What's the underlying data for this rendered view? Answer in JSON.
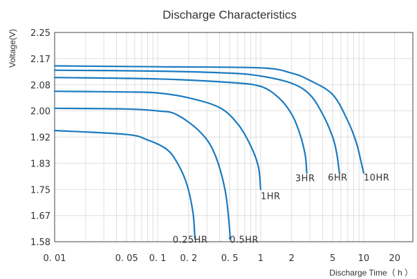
{
  "colors": {
    "curve": "#1a7abf",
    "grid": "#d6d6d6",
    "axis": "#444444",
    "text": "#333333"
  },
  "chart_data": {
    "type": "line",
    "title": "Discharge Characteristics",
    "xlabel": "Discharge Time（ h ）",
    "ylabel": "Voltage(V)",
    "x_scale": "log",
    "xlim": [
      0.01,
      30
    ],
    "ylim": [
      1.58,
      2.25
    ],
    "grid": true,
    "x_ticks": [
      {
        "value": 0.01,
        "label": "0. 01"
      },
      {
        "value": 0.05,
        "label": "0. 05"
      },
      {
        "value": 0.1,
        "label": "0. 1"
      },
      {
        "value": 0.2,
        "label": "0. 2"
      },
      {
        "value": 0.5,
        "label": "0. 5"
      },
      {
        "value": 1,
        "label": "1"
      },
      {
        "value": 2,
        "label": "2"
      },
      {
        "value": 5,
        "label": "5"
      },
      {
        "value": 10,
        "label": "10"
      },
      {
        "value": 20,
        "label": "20"
      }
    ],
    "y_ticks": [
      {
        "value": 2.25,
        "label": "2.25"
      },
      {
        "value": 2.17,
        "label": "2.17"
      },
      {
        "value": 2.08,
        "label": "2.08"
      },
      {
        "value": 2.0,
        "label": "2.00"
      },
      {
        "value": 1.92,
        "label": "1.92"
      },
      {
        "value": 1.83,
        "label": "1.83"
      },
      {
        "value": 1.75,
        "label": "1.75"
      },
      {
        "value": 1.67,
        "label": "1.67"
      },
      {
        "value": 1.58,
        "label": "1.58"
      }
    ],
    "series": [
      {
        "name": "10HR",
        "points": [
          [
            0.01,
            2.145
          ],
          [
            0.1,
            2.142
          ],
          [
            1,
            2.138
          ],
          [
            2,
            2.12
          ],
          [
            3,
            2.095
          ],
          [
            5,
            2.05
          ],
          [
            7,
            1.97
          ],
          [
            8.5,
            1.9
          ],
          [
            9.5,
            1.83
          ],
          [
            10,
            1.8
          ]
        ]
      },
      {
        "name": "6HR",
        "points": [
          [
            0.01,
            2.13
          ],
          [
            0.1,
            2.127
          ],
          [
            0.5,
            2.12
          ],
          [
            1,
            2.11
          ],
          [
            2,
            2.085
          ],
          [
            3,
            2.05
          ],
          [
            4,
            1.99
          ],
          [
            5,
            1.92
          ],
          [
            5.5,
            1.86
          ],
          [
            5.8,
            1.8
          ]
        ]
      },
      {
        "name": "3HR",
        "points": [
          [
            0.01,
            2.105
          ],
          [
            0.1,
            2.1
          ],
          [
            0.5,
            2.088
          ],
          [
            1,
            2.075
          ],
          [
            1.5,
            2.04
          ],
          [
            2,
            1.99
          ],
          [
            2.4,
            1.93
          ],
          [
            2.7,
            1.86
          ],
          [
            2.8,
            1.8
          ]
        ]
      },
      {
        "name": "1HR",
        "points": [
          [
            0.01,
            2.06
          ],
          [
            0.05,
            2.058
          ],
          [
            0.1,
            2.055
          ],
          [
            0.2,
            2.04
          ],
          [
            0.4,
            2.01
          ],
          [
            0.6,
            1.96
          ],
          [
            0.8,
            1.89
          ],
          [
            0.95,
            1.82
          ],
          [
            1,
            1.75
          ]
        ]
      },
      {
        "name": "0.5HR",
        "points": [
          [
            0.01,
            2.008
          ],
          [
            0.05,
            2.006
          ],
          [
            0.1,
            2.0
          ],
          [
            0.15,
            1.99
          ],
          [
            0.25,
            1.94
          ],
          [
            0.35,
            1.87
          ],
          [
            0.45,
            1.75
          ],
          [
            0.5,
            1.62
          ],
          [
            0.5,
            1.59
          ]
        ]
      },
      {
        "name": "0.25HR",
        "points": [
          [
            0.01,
            1.94
          ],
          [
            0.05,
            1.928
          ],
          [
            0.08,
            1.91
          ],
          [
            0.12,
            1.88
          ],
          [
            0.15,
            1.84
          ],
          [
            0.19,
            1.77
          ],
          [
            0.22,
            1.68
          ],
          [
            0.23,
            1.59
          ]
        ]
      }
    ],
    "curve_labels": [
      {
        "text": "10HR",
        "x": 10,
        "y": 1.788
      },
      {
        "text": "6HR",
        "x": 5.6,
        "y": 1.788
      },
      {
        "text": "3HR",
        "x": 2.7,
        "y": 1.785
      },
      {
        "text": "1HR",
        "x": 1.0,
        "y": 1.73
      },
      {
        "text": "0.5HR",
        "x": 0.5,
        "y": 1.588
      },
      {
        "text": "0.25HR",
        "x": 0.14,
        "y": 1.588
      }
    ]
  }
}
